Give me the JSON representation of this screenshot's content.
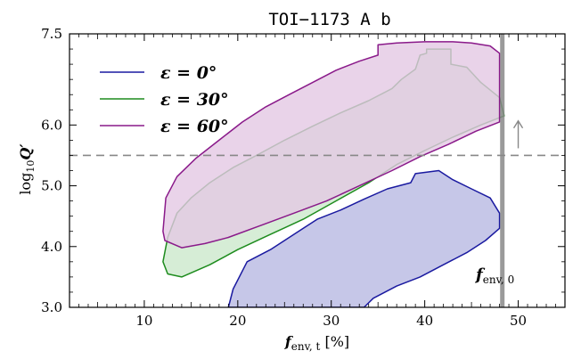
{
  "chart_data": {
    "type": "area",
    "title": "TOI−1173 A b",
    "xlabel": {
      "main": "f",
      "sub": "env, t",
      "unit": " [%]"
    },
    "ylabel": {
      "main": "log",
      "sub": "10",
      "var": "Q′"
    },
    "xlim": [
      2,
      55
    ],
    "ylim": [
      3.0,
      7.5
    ],
    "xticks": [
      10,
      20,
      30,
      40,
      50
    ],
    "xtick_labels": [
      "10",
      "20",
      "30",
      "40",
      "50"
    ],
    "yticks": [
      3.0,
      4.0,
      5.0,
      6.0,
      7.5
    ],
    "ytick_labels": [
      "3.0",
      "4.0",
      "5.0",
      "6.0",
      "7.5"
    ],
    "legend_position": "top-left",
    "grid": false,
    "series": [
      {
        "name": "ε = 0°",
        "color": "#1a1aa0",
        "fill": "#c6c7e8",
        "polygon": [
          [
            19.0,
            3.0
          ],
          [
            19.5,
            3.3
          ],
          [
            21.0,
            3.75
          ],
          [
            23.5,
            3.95
          ],
          [
            26.0,
            4.2
          ],
          [
            28.5,
            4.45
          ],
          [
            31.0,
            4.6
          ],
          [
            33.5,
            4.78
          ],
          [
            36.0,
            4.95
          ],
          [
            38.5,
            5.05
          ],
          [
            39.0,
            5.2
          ],
          [
            41.5,
            5.25
          ],
          [
            43.0,
            5.1
          ],
          [
            45.0,
            4.95
          ],
          [
            47.0,
            4.8
          ],
          [
            48.0,
            4.55
          ],
          [
            48.0,
            4.3
          ],
          [
            46.5,
            4.1
          ],
          [
            44.5,
            3.9
          ],
          [
            42.0,
            3.7
          ],
          [
            39.5,
            3.5
          ],
          [
            37.0,
            3.35
          ],
          [
            34.5,
            3.15
          ],
          [
            33.5,
            3.0
          ]
        ]
      },
      {
        "name": "ε = 30°",
        "color": "#1e8c1e",
        "fill": "#cce8cc",
        "polygon": [
          [
            12.0,
            3.75
          ],
          [
            12.5,
            4.15
          ],
          [
            13.5,
            4.55
          ],
          [
            15.0,
            4.8
          ],
          [
            17.0,
            5.05
          ],
          [
            19.5,
            5.3
          ],
          [
            22.0,
            5.5
          ],
          [
            25.0,
            5.75
          ],
          [
            28.0,
            5.98
          ],
          [
            31.0,
            6.2
          ],
          [
            34.0,
            6.4
          ],
          [
            36.5,
            6.6
          ],
          [
            37.5,
            6.75
          ],
          [
            39.0,
            6.92
          ],
          [
            39.5,
            7.15
          ],
          [
            40.2,
            7.18
          ],
          [
            40.2,
            7.25
          ],
          [
            42.8,
            7.25
          ],
          [
            42.8,
            7.0
          ],
          [
            44.5,
            6.95
          ],
          [
            46.0,
            6.7
          ],
          [
            48.0,
            6.45
          ],
          [
            48.5,
            6.15
          ],
          [
            46.0,
            6.0
          ],
          [
            43.0,
            5.8
          ],
          [
            40.0,
            5.58
          ],
          [
            37.0,
            5.35
          ],
          [
            34.0,
            5.05
          ],
          [
            30.5,
            4.75
          ],
          [
            27.0,
            4.45
          ],
          [
            23.5,
            4.2
          ],
          [
            20.0,
            3.95
          ],
          [
            17.0,
            3.7
          ],
          [
            14.0,
            3.5
          ],
          [
            12.5,
            3.55
          ]
        ]
      },
      {
        "name": "ε = 60°",
        "color": "#8a1a8a",
        "fill": "#e4c8e4",
        "polygon": [
          [
            12.0,
            4.25
          ],
          [
            12.3,
            4.8
          ],
          [
            13.5,
            5.15
          ],
          [
            15.5,
            5.45
          ],
          [
            18.0,
            5.75
          ],
          [
            20.5,
            6.05
          ],
          [
            23.0,
            6.3
          ],
          [
            25.5,
            6.5
          ],
          [
            28.0,
            6.7
          ],
          [
            30.5,
            6.9
          ],
          [
            33.0,
            7.05
          ],
          [
            35.0,
            7.15
          ],
          [
            35.0,
            7.32
          ],
          [
            37.0,
            7.35
          ],
          [
            40.0,
            7.37
          ],
          [
            43.0,
            7.37
          ],
          [
            45.0,
            7.35
          ],
          [
            47.0,
            7.3
          ],
          [
            48.0,
            7.18
          ],
          [
            48.0,
            6.05
          ],
          [
            45.5,
            5.9
          ],
          [
            42.5,
            5.68
          ],
          [
            39.5,
            5.48
          ],
          [
            36.5,
            5.25
          ],
          [
            33.0,
            5.0
          ],
          [
            29.5,
            4.75
          ],
          [
            26.0,
            4.55
          ],
          [
            22.5,
            4.35
          ],
          [
            19.0,
            4.15
          ],
          [
            16.5,
            4.05
          ],
          [
            14.0,
            3.98
          ],
          [
            12.2,
            4.1
          ]
        ]
      }
    ],
    "hline": {
      "y": 5.5,
      "style": "dashed",
      "color": "#888888"
    },
    "vline": {
      "x": 48.3,
      "color": "#888888",
      "label_main": "f",
      "label_sub": "env, 0"
    },
    "arrow": {
      "x": 50.0,
      "y_from": 5.5,
      "y_to": 5.95,
      "color": "#888888"
    }
  }
}
